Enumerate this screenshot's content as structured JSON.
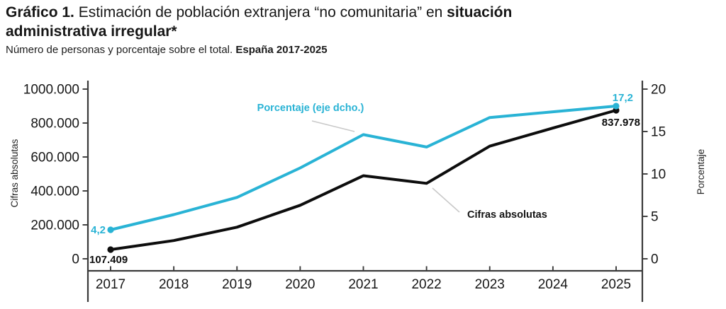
{
  "header": {
    "title_line1": [
      {
        "text": "Gráfico 1.",
        "bold": true
      },
      {
        "text": " Estimación de población extranjera “no comunitaria” en ",
        "bold": false
      },
      {
        "text": "situación",
        "bold": true
      }
    ],
    "title_line2": [
      {
        "text": "administrativa irregular*",
        "bold": true
      }
    ],
    "subtitle": [
      {
        "text": "Número de personas y porcentaje sobre el total. ",
        "bold": false
      },
      {
        "text": "España 2017-2025",
        "bold": true
      }
    ]
  },
  "chart_data": {
    "type": "line",
    "title": "Gráfico 1. Estimación de población extranjera “no comunitaria” en situación administrativa irregular*",
    "subtitle": "Número de personas y porcentaje sobre el total. España 2017-2025",
    "categories": [
      "2017",
      "2018",
      "2019",
      "2020",
      "2021",
      "2022",
      "2023",
      "2024",
      "2025"
    ],
    "series": [
      {
        "name": "Cifras absolutas",
        "axis": "left",
        "color": "#0d0d0d",
        "values": [
          107409,
          155000,
          225000,
          340000,
          495000,
          455000,
          650000,
          745000,
          837978
        ],
        "endpoint_labels": {
          "first": "107.409",
          "last": "837.978"
        }
      },
      {
        "name": "Porcentaje (eje dcho.)",
        "axis": "right",
        "color": "#29b3d5",
        "values": [
          4.2,
          5.8,
          7.6,
          10.7,
          14.2,
          12.9,
          16.0,
          16.6,
          17.2
        ],
        "endpoint_labels": {
          "first": "4,2",
          "last": "17,2"
        }
      }
    ],
    "left_axis": {
      "title": "Cifras absolutas",
      "range": [
        0,
        1000000
      ],
      "tick_labels": [
        "0",
        "200.000",
        "400.000",
        "600.000",
        "800.000",
        "1000.000"
      ]
    },
    "right_axis": {
      "title": "Porcentaje",
      "range": [
        0,
        20
      ],
      "tick_labels": [
        "0",
        "5",
        "10",
        "15",
        "20"
      ]
    },
    "annotations": [
      {
        "text": "Porcentaje (eje dcho.)",
        "color": "#29b3d5"
      },
      {
        "text": "Cifras absolutas",
        "color": "#141414"
      }
    ],
    "grid": false,
    "legend_position": "inline-annotations"
  },
  "colors": {
    "accent_cyan": "#29b3d5",
    "line_black": "#0d0d0d",
    "axis": "#3a3a3a",
    "leader_line": "#c9c9c9",
    "background": "#ffffff"
  }
}
